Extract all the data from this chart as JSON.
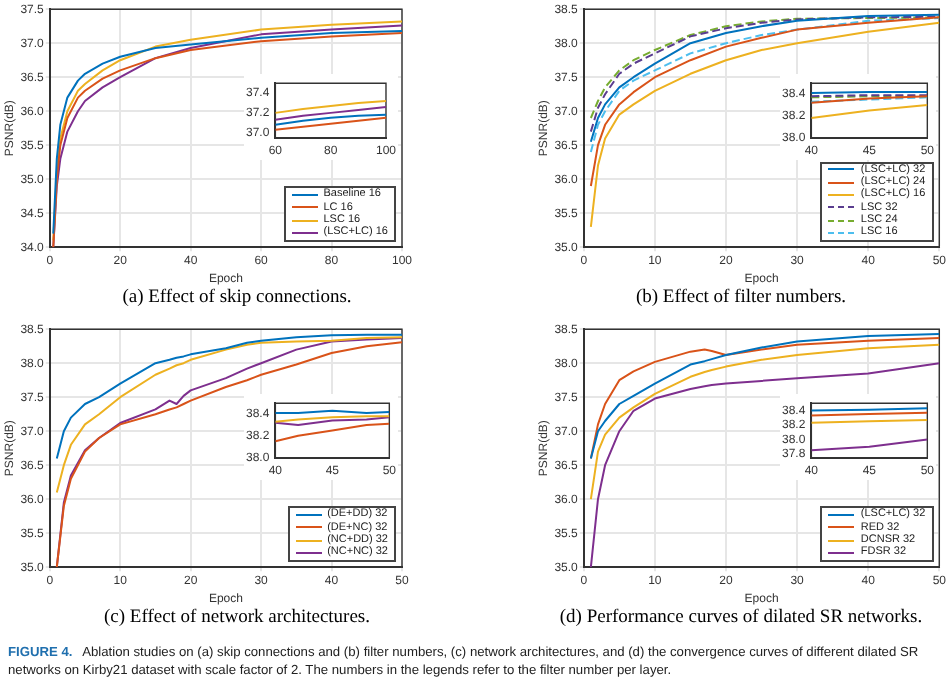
{
  "chart_data": [
    {
      "type": "line",
      "xlabel": "Epoch",
      "ylabel": "PSNR(dB)",
      "annotations": [
        "(a) Effect of skip connections."
      ],
      "grid": true,
      "legend": "bottom right",
      "marker": "none",
      "line_style": "solid",
      "xlim": [
        0,
        100
      ],
      "xticks": [
        0,
        20,
        40,
        60,
        80,
        100
      ],
      "ylim": [
        34,
        37.5
      ],
      "yticks": [
        {
          "value": 34,
          "label": "34.0"
        },
        34.5,
        {
          "value": 35,
          "label": "35.0"
        },
        35.5,
        {
          "value": 36,
          "label": "36.0"
        },
        36.5,
        {
          "value": 37,
          "label": "37.0"
        },
        37.5
      ],
      "x": [
        1,
        2,
        3,
        5,
        8,
        10,
        15,
        20,
        30,
        40,
        60,
        80,
        100
      ],
      "series": [
        {
          "name": "Baseline 16",
          "color": "#0072bd",
          "values": [
            34.2,
            35.3,
            35.8,
            36.2,
            36.45,
            36.55,
            36.7,
            36.8,
            36.93,
            36.98,
            37.08,
            37.15,
            37.18
          ]
        },
        {
          "name": "LC 16",
          "color": "#d95319",
          "values": [
            34.0,
            35.0,
            35.5,
            35.9,
            36.2,
            36.3,
            36.48,
            36.6,
            36.78,
            36.9,
            37.03,
            37.1,
            37.15
          ]
        },
        {
          "name": "LSC 16",
          "color": "#edb120",
          "values": [
            34.1,
            35.1,
            35.6,
            36.0,
            36.3,
            36.4,
            36.6,
            36.75,
            36.95,
            37.05,
            37.2,
            37.27,
            37.32
          ]
        },
        {
          "name": "(LSC+LC) 16",
          "color": "#7e2f8e",
          "values": [
            34.0,
            34.9,
            35.3,
            35.7,
            36.0,
            36.15,
            36.35,
            36.5,
            36.78,
            36.93,
            37.13,
            37.2,
            37.26
          ]
        }
      ]
    },
    {
      "type": "line",
      "marker": "none",
      "line_style": "solid",
      "xlim": [
        60,
        100
      ],
      "xticks": [
        60,
        80,
        100
      ],
      "ylim": [
        36.95,
        37.5
      ],
      "yticks": [
        {
          "value": 37,
          "label": "37.0"
        },
        37.2,
        37.4
      ],
      "x": [
        60,
        70,
        80,
        90,
        100
      ],
      "series": [
        {
          "color": "#0072bd",
          "values": [
            37.08,
            37.12,
            37.15,
            37.17,
            37.18
          ]
        },
        {
          "color": "#d95319",
          "values": [
            37.03,
            37.06,
            37.09,
            37.12,
            37.15
          ]
        },
        {
          "color": "#edb120",
          "values": [
            37.2,
            37.24,
            37.27,
            37.3,
            37.32
          ]
        },
        {
          "color": "#7e2f8e",
          "values": [
            37.13,
            37.17,
            37.2,
            37.23,
            37.26
          ]
        }
      ]
    },
    {
      "type": "line",
      "xlabel": "Epoch",
      "ylabel": "PSNR(dB)",
      "annotations": [
        "(b) Effect of filter numbers."
      ],
      "grid": true,
      "legend": "bottom right",
      "marker": "none",
      "line_style": "solid",
      "xlim": [
        0,
        50
      ],
      "xticks": [
        0,
        10,
        20,
        30,
        40,
        50
      ],
      "ylim": [
        35,
        38.5
      ],
      "yticks": [
        {
          "value": 35,
          "label": "35.0"
        },
        35.5,
        {
          "value": 36,
          "label": "36.0"
        },
        36.5,
        {
          "value": 37,
          "label": "37.0"
        },
        37.5,
        {
          "value": 38,
          "label": "38.0"
        },
        38.5
      ],
      "x": [
        1,
        2,
        3,
        5,
        7,
        10,
        15,
        20,
        25,
        30,
        40,
        50
      ],
      "series": [
        {
          "name": "(LSC+LC) 32",
          "color": "#0072bd",
          "values": [
            36.55,
            36.9,
            37.1,
            37.35,
            37.5,
            37.7,
            38.0,
            38.15,
            38.25,
            38.33,
            38.4,
            38.42
          ]
        },
        {
          "name": "(LSC+LC) 24",
          "color": "#d95319",
          "values": [
            35.9,
            36.5,
            36.8,
            37.1,
            37.28,
            37.5,
            37.75,
            37.95,
            38.08,
            38.2,
            38.3,
            38.38
          ]
        },
        {
          "name": "(LSC+LC) 16",
          "color": "#edb120",
          "values": [
            35.3,
            36.2,
            36.6,
            36.95,
            37.1,
            37.3,
            37.55,
            37.75,
            37.9,
            38.0,
            38.17,
            38.3
          ]
        },
        {
          "name": "LSC 32",
          "color": "#5a3d8f",
          "line_style": "dashed",
          "values": [
            36.7,
            37.05,
            37.25,
            37.55,
            37.7,
            37.85,
            38.1,
            38.22,
            38.3,
            38.35,
            38.38,
            38.39
          ]
        },
        {
          "name": "LSC 24",
          "color": "#77ac30",
          "line_style": "dashed",
          "values": [
            36.9,
            37.15,
            37.35,
            37.6,
            37.75,
            37.9,
            38.12,
            38.25,
            38.32,
            38.36,
            38.37,
            38.38
          ]
        },
        {
          "name": "LSC 16",
          "color": "#4dbeee",
          "line_style": "dashed",
          "values": [
            36.4,
            36.8,
            37.0,
            37.3,
            37.45,
            37.6,
            37.85,
            38.0,
            38.12,
            38.2,
            38.33,
            38.37
          ]
        }
      ]
    },
    {
      "type": "line",
      "marker": "none",
      "line_style": "solid",
      "xlim": [
        40,
        50
      ],
      "xticks": [
        40,
        45,
        50
      ],
      "ylim": [
        38,
        38.5
      ],
      "yticks": [
        {
          "value": 38,
          "label": "38.0"
        },
        38.2,
        38.4
      ],
      "x": [
        40,
        45,
        50
      ],
      "series": [
        {
          "color": "#0072bd",
          "values": [
            38.41,
            38.42,
            38.42
          ]
        },
        {
          "color": "#d95319",
          "values": [
            38.32,
            38.36,
            38.38
          ]
        },
        {
          "color": "#edb120",
          "values": [
            38.18,
            38.25,
            38.3
          ]
        },
        {
          "color": "#5a3d8f",
          "line_style": "dashed",
          "values": [
            38.38,
            38.39,
            38.39
          ]
        },
        {
          "color": "#77ac30",
          "line_style": "dashed",
          "values": [
            38.37,
            38.38,
            38.38
          ]
        },
        {
          "color": "#4dbeee",
          "line_style": "dashed",
          "values": [
            38.33,
            38.35,
            38.37
          ]
        }
      ]
    },
    {
      "type": "line",
      "xlabel": "Epoch",
      "ylabel": "PSNR(dB)",
      "annotations": [
        "(c) Effect of network architectures."
      ],
      "grid": true,
      "legend": "bottom right",
      "marker": "none",
      "line_style": "solid",
      "xlim": [
        0,
        50
      ],
      "xticks": [
        0,
        10,
        20,
        30,
        40,
        50
      ],
      "ylim": [
        35,
        38.5
      ],
      "yticks": [
        {
          "value": 35,
          "label": "35.0"
        },
        35.5,
        {
          "value": 36,
          "label": "36.0"
        },
        36.5,
        {
          "value": 37,
          "label": "37.0"
        },
        37.5,
        {
          "value": 38,
          "label": "38.0"
        },
        38.5
      ],
      "x": [
        1,
        2,
        3,
        5,
        7,
        10,
        15,
        17,
        18,
        19,
        20,
        25,
        28,
        30,
        35,
        40,
        45,
        50
      ],
      "series": [
        {
          "name": "(DE+DD) 32",
          "color": "#0072bd",
          "values": [
            36.6,
            37.0,
            37.2,
            37.4,
            37.5,
            37.7,
            38.0,
            38.05,
            38.08,
            38.1,
            38.13,
            38.22,
            38.3,
            38.33,
            38.38,
            38.41,
            38.42,
            38.42
          ]
        },
        {
          "name": "(DE+NC) 32",
          "color": "#d95319",
          "values": [
            35.0,
            35.9,
            36.3,
            36.7,
            36.9,
            37.1,
            37.25,
            37.32,
            37.35,
            37.4,
            37.45,
            37.65,
            37.75,
            37.83,
            37.98,
            38.15,
            38.25,
            38.31
          ]
        },
        {
          "name": "(NC+DD) 32",
          "color": "#edb120",
          "values": [
            36.1,
            36.5,
            36.8,
            37.1,
            37.25,
            37.5,
            37.83,
            37.92,
            37.97,
            38.0,
            38.05,
            38.2,
            38.27,
            38.3,
            38.32,
            38.33,
            38.37,
            38.38
          ]
        },
        {
          "name": "(NC+NC) 32",
          "color": "#7e2f8e",
          "values": [
            35.0,
            35.95,
            36.35,
            36.72,
            36.9,
            37.12,
            37.32,
            37.45,
            37.4,
            37.52,
            37.6,
            37.78,
            37.92,
            38.0,
            38.2,
            38.32,
            38.35,
            38.37
          ]
        }
      ]
    },
    {
      "type": "line",
      "marker": "none",
      "line_style": "solid",
      "xlim": [
        40,
        50
      ],
      "xticks": [
        40,
        45,
        50
      ],
      "ylim": [
        38,
        38.5
      ],
      "yticks": [
        {
          "value": 38,
          "label": "38.0"
        },
        38.2,
        38.4
      ],
      "x": [
        40,
        42,
        45,
        48,
        50
      ],
      "series": [
        {
          "color": "#0072bd",
          "values": [
            38.41,
            38.41,
            38.43,
            38.41,
            38.42
          ]
        },
        {
          "color": "#d95319",
          "values": [
            38.15,
            38.2,
            38.25,
            38.3,
            38.31
          ]
        },
        {
          "color": "#edb120",
          "values": [
            38.33,
            38.35,
            38.37,
            38.38,
            38.38
          ]
        },
        {
          "color": "#7e2f8e",
          "values": [
            38.32,
            38.3,
            38.34,
            38.35,
            38.37
          ]
        }
      ]
    },
    {
      "type": "line",
      "xlabel": "Epoch",
      "ylabel": "PSNR(dB)",
      "annotations": [
        "(d) Performance curves of dilated SR networks."
      ],
      "grid": true,
      "legend": "bottom right",
      "marker": "none",
      "line_style": "solid",
      "xlim": [
        0,
        50
      ],
      "xticks": [
        0,
        10,
        20,
        30,
        40,
        50
      ],
      "ylim": [
        35,
        38.5
      ],
      "yticks": [
        {
          "value": 35,
          "label": "35.0"
        },
        35.5,
        {
          "value": 36,
          "label": "36.0"
        },
        36.5,
        {
          "value": 37,
          "label": "37.0"
        },
        37.5,
        {
          "value": 38,
          "label": "38.0"
        },
        38.5
      ],
      "x": [
        1,
        2,
        3,
        5,
        7,
        10,
        15,
        17,
        18,
        20,
        25,
        30,
        40,
        50
      ],
      "series": [
        {
          "name": "(LSC+LC) 32",
          "color": "#0072bd",
          "values": [
            36.6,
            37.0,
            37.15,
            37.4,
            37.52,
            37.7,
            37.98,
            38.03,
            38.06,
            38.12,
            38.23,
            38.32,
            38.4,
            38.43
          ]
        },
        {
          "name": "RED 32",
          "color": "#d95319",
          "values": [
            36.6,
            37.1,
            37.4,
            37.75,
            37.88,
            38.02,
            38.17,
            38.2,
            38.18,
            38.12,
            38.2,
            38.27,
            38.33,
            38.37
          ]
        },
        {
          "name": "DCNSR 32",
          "color": "#edb120",
          "values": [
            36.0,
            36.7,
            36.95,
            37.2,
            37.35,
            37.55,
            37.8,
            37.87,
            37.9,
            37.95,
            38.05,
            38.12,
            38.22,
            38.27
          ]
        },
        {
          "name": "FDSR 32",
          "color": "#7e2f8e",
          "values": [
            35.0,
            36.0,
            36.5,
            37.0,
            37.3,
            37.48,
            37.62,
            37.66,
            37.68,
            37.7,
            37.74,
            37.78,
            37.85,
            38.0
          ]
        }
      ]
    },
    {
      "type": "line",
      "marker": "none",
      "line_style": "solid",
      "xlim": [
        40,
        50
      ],
      "xticks": [
        40,
        45,
        50
      ],
      "ylim": [
        37.75,
        38.5
      ],
      "yticks": [
        37.8,
        {
          "value": 38,
          "label": "38.0"
        },
        38.2,
        38.4
      ],
      "x": [
        40,
        45,
        50
      ],
      "series": [
        {
          "color": "#0072bd",
          "values": [
            38.4,
            38.41,
            38.43
          ]
        },
        {
          "color": "#d95319",
          "values": [
            38.33,
            38.35,
            38.37
          ]
        },
        {
          "color": "#edb120",
          "values": [
            38.23,
            38.25,
            38.27
          ]
        },
        {
          "color": "#7e2f8e",
          "values": [
            37.85,
            37.9,
            38.0
          ]
        }
      ]
    },
    {
      "type": "other",
      "annotations": [
        "FIGURE 4.",
        "Ablation studies on (a) skip connections and (b) filter numbers, (c) network architectures, and (d) the convergence curves of different dilated SR networks on Kirby21 dataset with scale factor of 2. The numbers in the legends refer to the filter number per layer."
      ]
    }
  ]
}
